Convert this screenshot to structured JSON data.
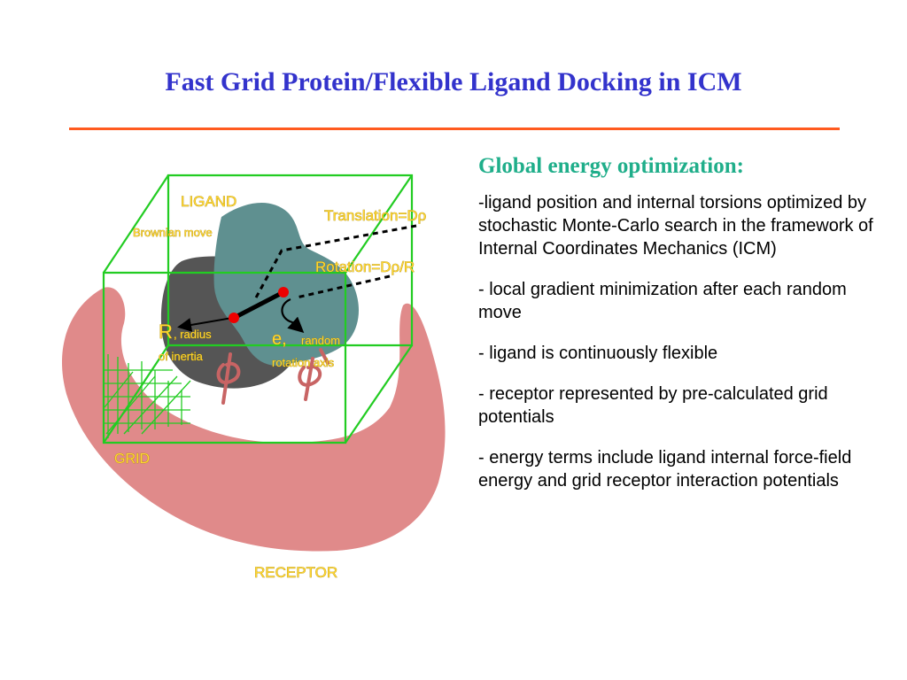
{
  "slide": {
    "title": "Fast Grid Protein/Flexible Ligand Docking in ICM"
  },
  "diagram": {
    "labels": {
      "ligand": "LIGAND",
      "brownian": "Brownian move",
      "translation": "Translation=Dρ",
      "rotation": "Rotation=Dρ/R",
      "r_symbol": "R",
      "r_radius": ", radius",
      "r_inertia": "of inertia",
      "e_symbol": "e,",
      "e_random": "random",
      "e_axis": "rotation axis",
      "grid": "GRID",
      "receptor": "RECEPTOR"
    },
    "colors": {
      "receptor": "#e08a8a",
      "ligand_dark": "#555555",
      "ligand_teal": "#5f9090",
      "cube": "#22cc22",
      "label": "#ffd633",
      "point": "#ee0000",
      "torsion": "#c86464"
    }
  },
  "panel": {
    "heading": "Global energy optimization:",
    "bullets": [
      "-ligand position and internal torsions optimized by stochastic Monte-Carlo search in the framework of Internal Coordinates Mechanics (ICM)",
      "- local gradient minimization after each random move",
      "- ligand is continuously flexible",
      "- receptor represented by pre-calculated grid potentials",
      "- energy terms include ligand internal force-field energy and grid receptor interaction potentials"
    ]
  }
}
